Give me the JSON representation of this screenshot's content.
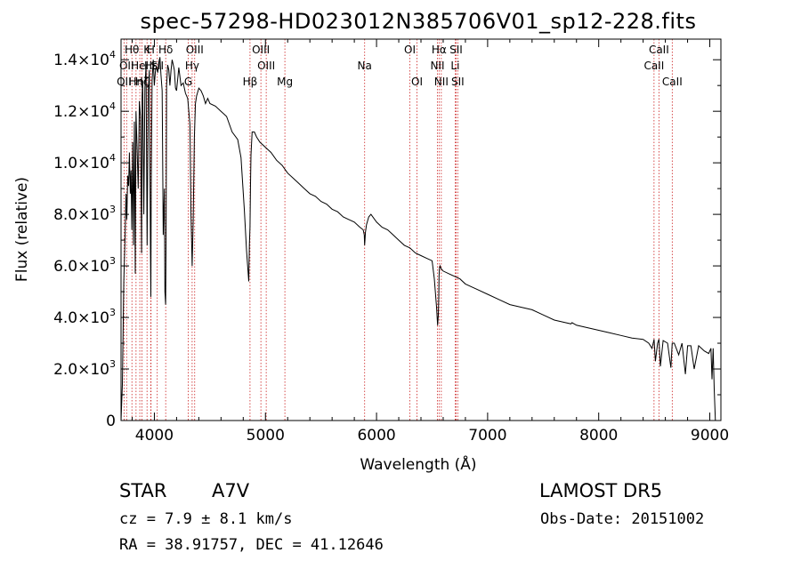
{
  "figure": {
    "title": "spec-57298-HD023012N385706V01_sp12-228.fits"
  },
  "info": {
    "class_label": "STAR",
    "subclass": "A7V",
    "survey": "LAMOST DR5",
    "cz": "cz = 7.9 ± 8.1 km/s",
    "obs_date": "Obs-Date: 20151002",
    "coords": "RA =  38.91757, DEC =  41.12646"
  },
  "colors": {
    "line": "#000000",
    "marker": "#cc2222",
    "background": "#ffffff"
  },
  "chart_data": {
    "type": "line",
    "title": "spec-57298-HD023012N385706V01_sp12-228.fits",
    "xlabel": "Wavelength (Å)",
    "ylabel": "Flux (relative)",
    "xlim": [
      3700,
      9100
    ],
    "ylim": [
      0,
      14800
    ],
    "x_ticks": [
      4000,
      5000,
      6000,
      7000,
      8000,
      9000
    ],
    "y_ticks": [
      {
        "value": 0,
        "mantissa": "0",
        "exp": ""
      },
      {
        "value": 2000,
        "mantissa": "2.0×10",
        "exp": "3"
      },
      {
        "value": 4000,
        "mantissa": "4.0×10",
        "exp": "3"
      },
      {
        "value": 6000,
        "mantissa": "6.0×10",
        "exp": "3"
      },
      {
        "value": 8000,
        "mantissa": "8.0×10",
        "exp": "3"
      },
      {
        "value": 10000,
        "mantissa": "1.0×10",
        "exp": "4"
      },
      {
        "value": 12000,
        "mantissa": "1.2×10",
        "exp": "4"
      },
      {
        "value": 14000,
        "mantissa": "1.4×10",
        "exp": "4"
      }
    ],
    "grid": false,
    "legend": "none",
    "series": [
      {
        "x": [
          3700,
          3712,
          3725,
          3735,
          3745,
          3752,
          3760,
          3768,
          3775,
          3783,
          3790,
          3797,
          3805,
          3812,
          3820,
          3828,
          3835,
          3845,
          3855,
          3865,
          3875,
          3885,
          3890,
          3895,
          3905,
          3915,
          3925,
          3935,
          3945,
          3955,
          3965,
          3968,
          3972,
          3980,
          3990,
          4000,
          4010,
          4020,
          4030,
          4040,
          4050,
          4060,
          4070,
          4080,
          4090,
          4095,
          4101,
          4105,
          4110,
          4120,
          4130,
          4140,
          4150,
          4160,
          4170,
          4180,
          4190,
          4200,
          4220,
          4240,
          4260,
          4280,
          4300,
          4320,
          4330,
          4340,
          4350,
          4360,
          4370,
          4380,
          4400,
          4420,
          4440,
          4460,
          4480,
          4500,
          4550,
          4600,
          4650,
          4700,
          4750,
          4780,
          4810,
          4830,
          4850,
          4855,
          4861,
          4866,
          4870,
          4880,
          4900,
          4920,
          4950,
          5000,
          5050,
          5100,
          5150,
          5200,
          5250,
          5300,
          5350,
          5400,
          5450,
          5500,
          5550,
          5600,
          5650,
          5700,
          5750,
          5800,
          5850,
          5880,
          5890,
          5893,
          5896,
          5900,
          5910,
          5930,
          5950,
          6000,
          6050,
          6100,
          6150,
          6200,
          6250,
          6300,
          6350,
          6400,
          6450,
          6500,
          6520,
          6540,
          6550,
          6556,
          6560,
          6563,
          6567,
          6572,
          6580,
          6600,
          6650,
          6700,
          6750,
          6800,
          6900,
          7000,
          7100,
          7200,
          7300,
          7400,
          7500,
          7600,
          7700,
          7750,
          7760,
          7800,
          7900,
          8000,
          8100,
          8200,
          8300,
          8400,
          8450,
          8480,
          8498,
          8510,
          8530,
          8542,
          8555,
          8580,
          8620,
          8650,
          8662,
          8680,
          8720,
          8750,
          8780,
          8800,
          8830,
          8860,
          8900,
          8950,
          8990,
          9010,
          9020,
          9030,
          9040,
          9050
        ],
        "y": [
          0,
          1400,
          5400,
          7000,
          8800,
          7800,
          9500,
          9100,
          10400,
          8800,
          9700,
          7400,
          10800,
          6800,
          11600,
          5700,
          12000,
          10500,
          9000,
          12400,
          11800,
          6500,
          12600,
          13200,
          8000,
          12900,
          13800,
          6800,
          12800,
          13600,
          6400,
          4800,
          9000,
          13200,
          14000,
          13000,
          13600,
          13700,
          13500,
          13900,
          14100,
          13400,
          12800,
          7200,
          9000,
          5000,
          4500,
          7000,
          13000,
          13800,
          13600,
          13000,
          13600,
          14000,
          13800,
          13600,
          12900,
          12800,
          13700,
          13000,
          13100,
          12700,
          12500,
          11500,
          8000,
          6000,
          7800,
          11000,
          12300,
          12600,
          12900,
          12800,
          12600,
          12300,
          12500,
          12300,
          12200,
          12000,
          11800,
          11200,
          10900,
          10200,
          8200,
          6600,
          5400,
          6800,
          7500,
          9200,
          10300,
          11200,
          11200,
          11000,
          10800,
          10600,
          10400,
          10100,
          9900,
          9600,
          9400,
          9200,
          9000,
          8800,
          8700,
          8500,
          8400,
          8200,
          8100,
          7900,
          7800,
          7700,
          7500,
          7400,
          7200,
          6800,
          7000,
          7300,
          7600,
          7900,
          8000,
          7700,
          7500,
          7400,
          7200,
          7000,
          6800,
          6700,
          6500,
          6400,
          6300,
          6200,
          5500,
          4400,
          3700,
          4100,
          4800,
          5600,
          5900,
          6000,
          5900,
          5800,
          5700,
          5600,
          5500,
          5300,
          5100,
          4900,
          4700,
          4500,
          4400,
          4300,
          4100,
          3900,
          3800,
          3750,
          3800,
          3700,
          3600,
          3500,
          3400,
          3300,
          3200,
          3150,
          3000,
          2800,
          3150,
          2300,
          3000,
          3150,
          2100,
          3100,
          3000,
          2050,
          3000,
          3000,
          2550,
          3000,
          1800,
          2900,
          2900,
          2000,
          2900,
          2700,
          2600,
          2800,
          1600,
          2800,
          1200,
          0
        ]
      }
    ],
    "line_markers": [
      {
        "wave": 3727,
        "label": "OII",
        "row": 2
      },
      {
        "wave": 3750,
        "label": "OII",
        "row": 1
      },
      {
        "wave": 3798,
        "label": "Hθ",
        "row": 0
      },
      {
        "wave": 3835,
        "label": "Hη",
        "row": 2
      },
      {
        "wave": 3869,
        "label": "HeI",
        "row": 1
      },
      {
        "wave": 3889,
        "label": "Hζ",
        "row": 2
      },
      {
        "wave": 3934,
        "label": "K",
        "row": 0
      },
      {
        "wave": 3968,
        "label": "H",
        "row": 0
      },
      {
        "wave": 3970,
        "label": "Hε",
        "row": 1
      },
      {
        "wave": 4102,
        "label": "Hδ",
        "row": 0
      },
      {
        "wave": 4026,
        "label": "SII",
        "row": 1
      },
      {
        "wave": 4305,
        "label": "G",
        "row": 2
      },
      {
        "wave": 4340,
        "label": "Hγ",
        "row": 1
      },
      {
        "wave": 4363,
        "label": "OIII",
        "row": 0
      },
      {
        "wave": 4861,
        "label": "Hβ",
        "row": 2
      },
      {
        "wave": 4959,
        "label": "OIII",
        "row": 0
      },
      {
        "wave": 5007,
        "label": "OIII",
        "row": 1
      },
      {
        "wave": 5175,
        "label": "Mg",
        "row": 2
      },
      {
        "wave": 5893,
        "label": "Na",
        "row": 1
      },
      {
        "wave": 6300,
        "label": "OI",
        "row": 0
      },
      {
        "wave": 6364,
        "label": "OI",
        "row": 2
      },
      {
        "wave": 6548,
        "label": "NII",
        "row": 1
      },
      {
        "wave": 6563,
        "label": "Hα",
        "row": 0
      },
      {
        "wave": 6583,
        "label": "NII",
        "row": 2
      },
      {
        "wave": 6708,
        "label": "Li",
        "row": 1
      },
      {
        "wave": 6716,
        "label": "SII",
        "row": 0
      },
      {
        "wave": 6731,
        "label": "SII",
        "row": 2
      },
      {
        "wave": 8498,
        "label": "CaII",
        "row": 1
      },
      {
        "wave": 8542,
        "label": "CaII",
        "row": 0
      },
      {
        "wave": 8662,
        "label": "CaII",
        "row": 2
      }
    ]
  }
}
